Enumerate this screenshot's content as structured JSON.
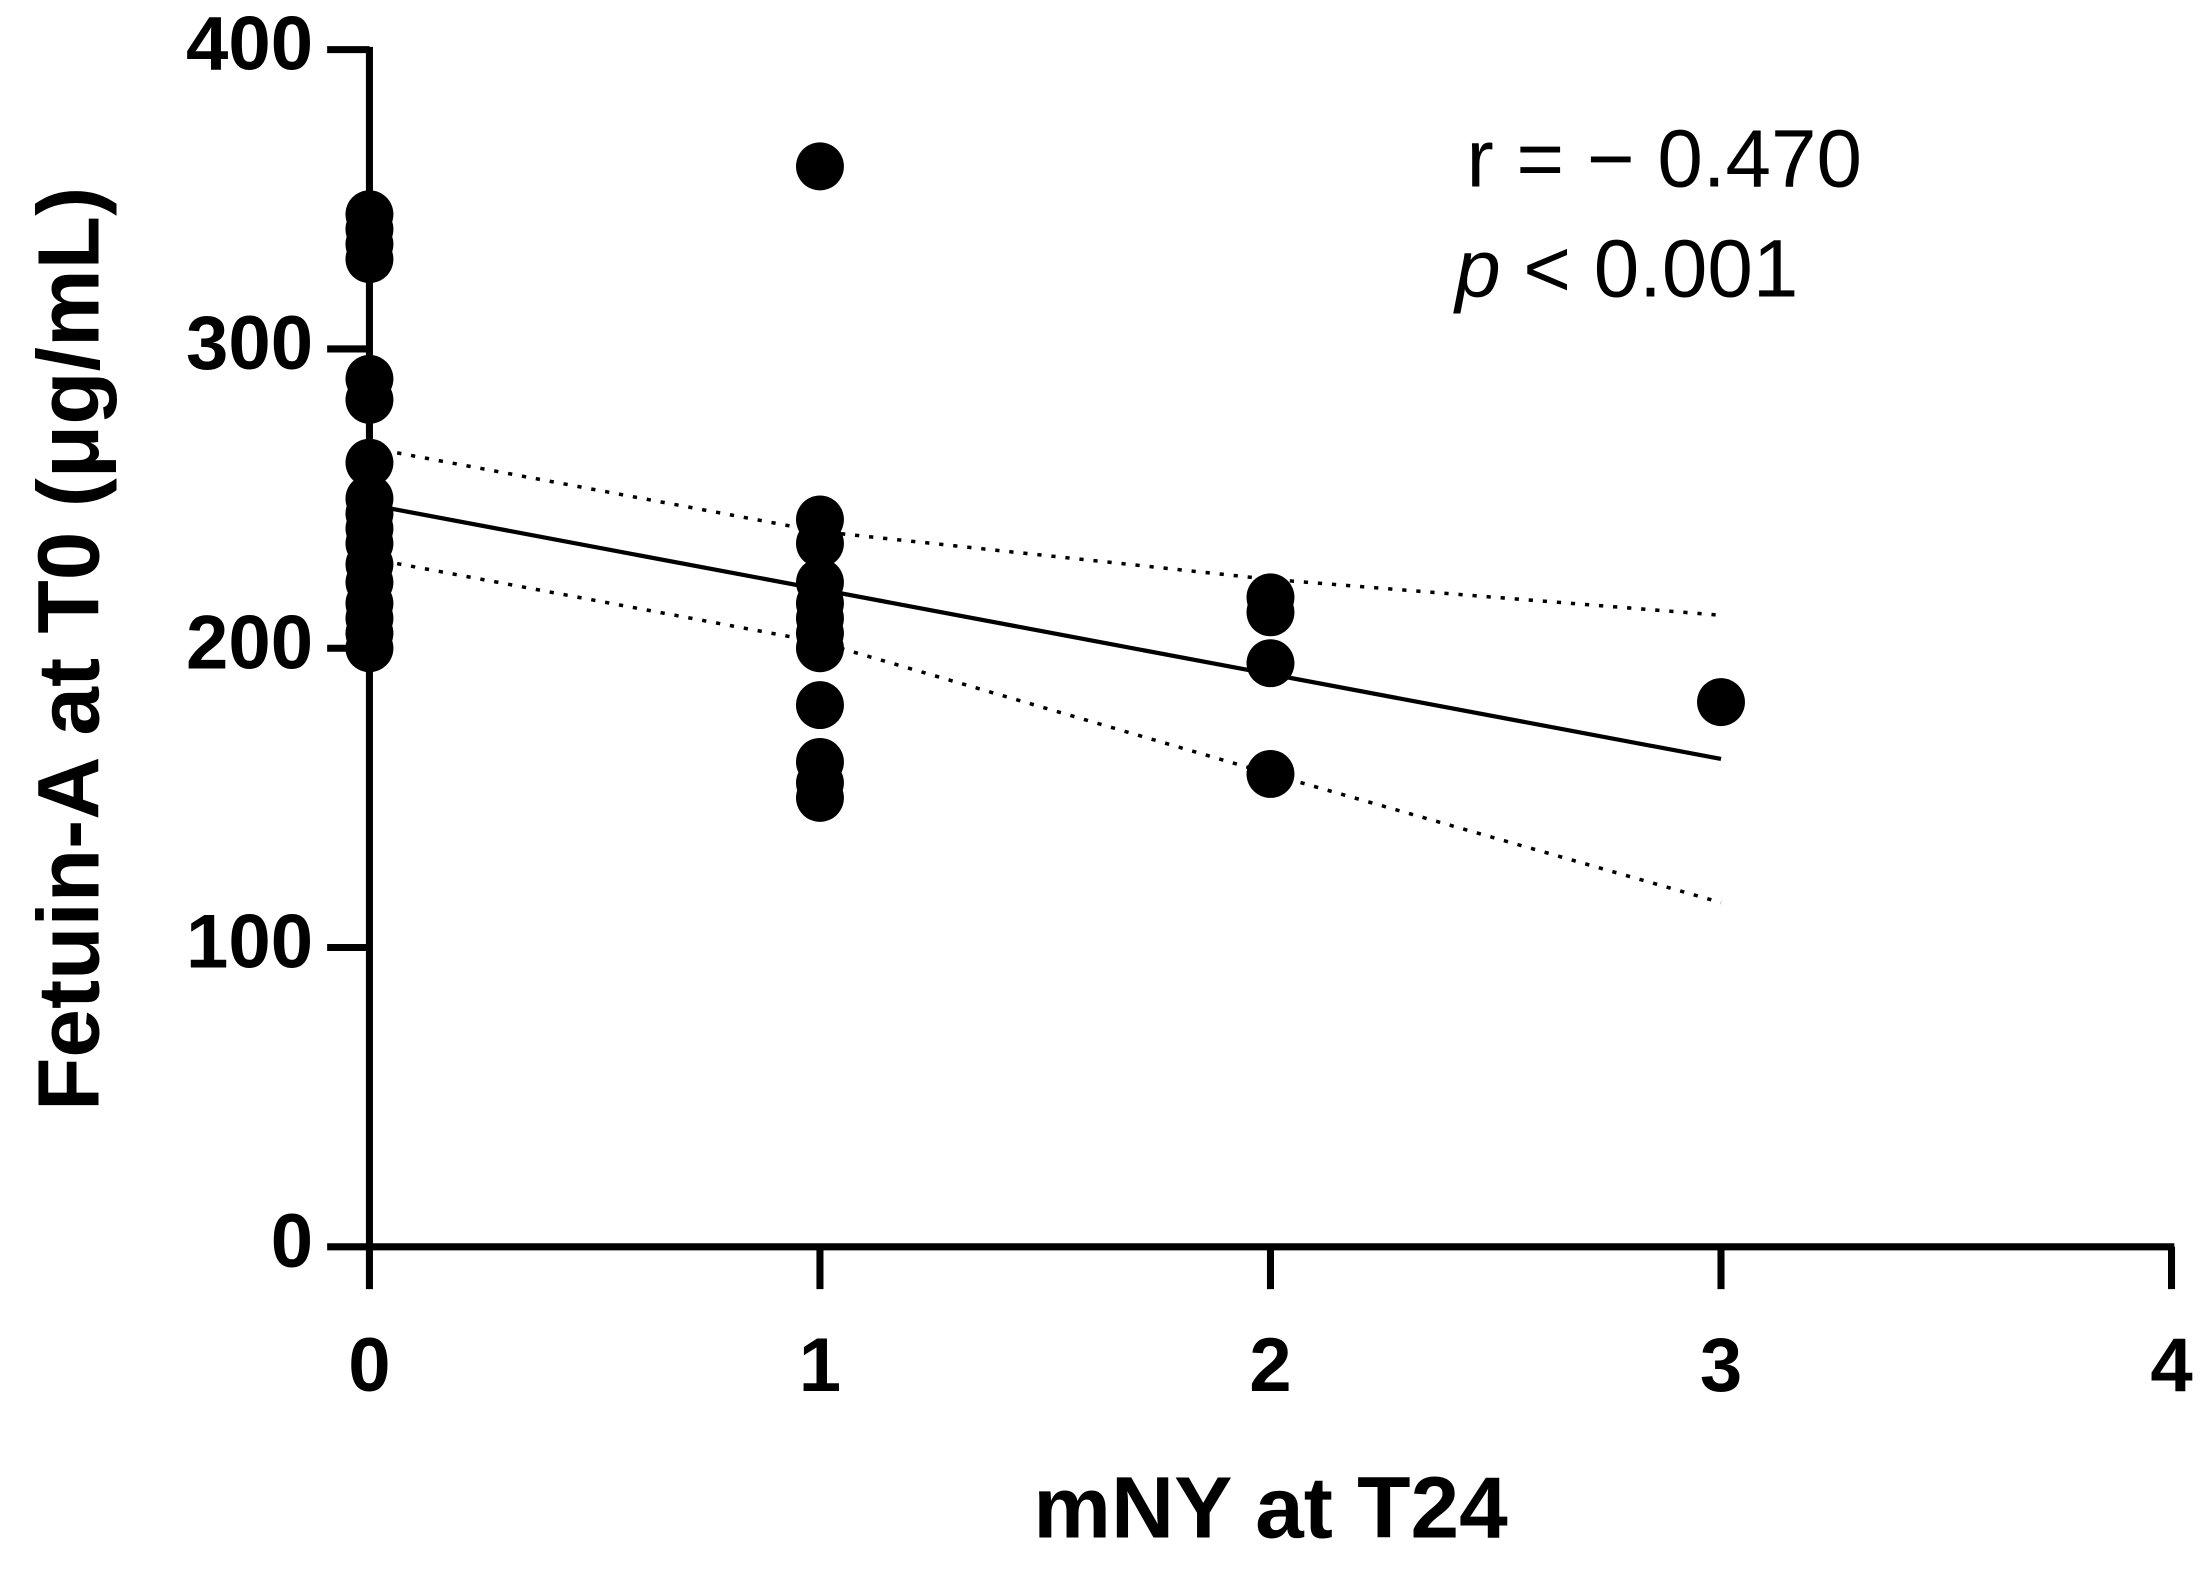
{
  "chart_data": {
    "type": "scatter",
    "x_label": "mNY at T24",
    "y_label": "Fetuin-A at T0 (μg/mL)",
    "xlim": [
      0,
      4
    ],
    "xticks": [
      0,
      1,
      2,
      3,
      4
    ],
    "ylim": [
      0,
      400
    ],
    "yticks": [
      0,
      100,
      200,
      300,
      400
    ],
    "color": "#000000",
    "points": {
      "x": [
        0,
        0,
        0,
        0,
        0,
        0,
        0,
        0,
        0,
        0,
        0,
        0,
        0,
        0,
        0,
        0,
        0,
        1,
        1,
        1,
        1,
        1,
        1,
        1,
        1,
        1,
        1,
        1,
        1,
        2,
        2,
        2,
        2,
        3
      ],
      "y": [
        345,
        340,
        335,
        330,
        290,
        283,
        262,
        250,
        245,
        240,
        235,
        228,
        222,
        215,
        210,
        205,
        200,
        361,
        243,
        235,
        222,
        215,
        210,
        205,
        200,
        181,
        162,
        155,
        150,
        217,
        212,
        195,
        158,
        182
      ]
    },
    "fit": {
      "x": [
        0,
        3
      ],
      "y": [
        248,
        163
      ]
    },
    "ci_upper": {
      "x": [
        0,
        1,
        2,
        3
      ],
      "y": [
        267,
        239,
        223,
        211
      ]
    },
    "ci_lower": {
      "x": [
        0,
        1,
        2,
        3
      ],
      "y": [
        230,
        202,
        158,
        115
      ]
    },
    "annotation_r": "r = − 0.470",
    "annotation_p_symbol": "p",
    "annotation_p_text": "< 0.001"
  }
}
